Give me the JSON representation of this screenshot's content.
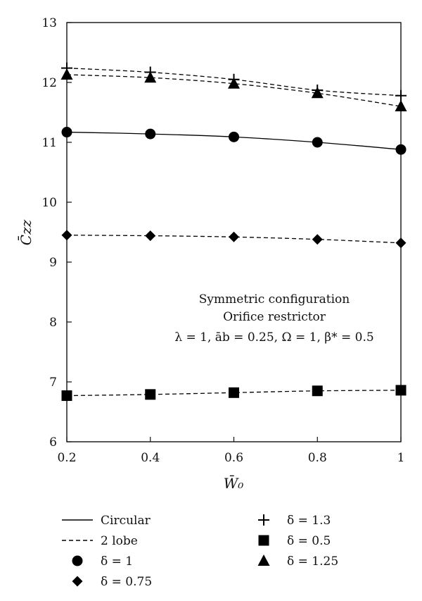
{
  "chart_data": {
    "type": "line",
    "xlabel": "W̄₀",
    "ylabel": "C̄zz",
    "xlim": [
      0.2,
      1.0
    ],
    "ylim": [
      6,
      13
    ],
    "x_ticks": [
      "0.2",
      "0.4",
      "0.6",
      "0.8",
      "1"
    ],
    "y_ticks": [
      "6",
      "7",
      "8",
      "9",
      "10",
      "11",
      "12",
      "13"
    ],
    "grid": false,
    "annotation": [
      "Symmetric configuration",
      "Orifice restrictor",
      "λ = 1, āb = 0.25, Ω = 1, β* = 0.5"
    ],
    "series": [
      {
        "name": "δ = 1.3",
        "line": "dashed",
        "marker": "plus",
        "x": [
          0.2,
          0.4,
          0.6,
          0.8,
          1.0
        ],
        "y": [
          12.24,
          12.17,
          12.05,
          11.87,
          11.78
        ]
      },
      {
        "name": "δ = 1.25",
        "line": "dashed",
        "marker": "triangle",
        "x": [
          0.2,
          0.4,
          0.6,
          0.8,
          1.0
        ],
        "y": [
          12.13,
          12.08,
          11.98,
          11.82,
          11.6
        ]
      },
      {
        "name": "δ = 1",
        "line": "solid",
        "marker": "circle",
        "x": [
          0.2,
          0.4,
          0.6,
          0.8,
          1.0
        ],
        "y": [
          11.17,
          11.14,
          11.09,
          11.0,
          10.88
        ]
      },
      {
        "name": "δ = 0.75",
        "line": "dashed",
        "marker": "diamond",
        "x": [
          0.2,
          0.4,
          0.6,
          0.8,
          1.0
        ],
        "y": [
          9.45,
          9.44,
          9.42,
          9.38,
          9.32
        ]
      },
      {
        "name": "δ = 0.5",
        "line": "dashed",
        "marker": "square",
        "x": [
          0.2,
          0.4,
          0.6,
          0.8,
          1.0
        ],
        "y": [
          6.77,
          6.79,
          6.82,
          6.85,
          6.86
        ]
      }
    ],
    "legend": {
      "placement": "bottom",
      "entries": [
        {
          "label": "Circular",
          "symbol": "solid-line"
        },
        {
          "label": "2 lobe",
          "symbol": "dashed-line"
        },
        {
          "label": "δ = 1",
          "symbol": "circle"
        },
        {
          "label": "δ = 0.75",
          "symbol": "diamond"
        },
        {
          "label": "δ = 1.3",
          "symbol": "plus"
        },
        {
          "label": "δ = 0.5",
          "symbol": "square"
        },
        {
          "label": "δ = 1.25",
          "symbol": "triangle"
        }
      ]
    }
  }
}
